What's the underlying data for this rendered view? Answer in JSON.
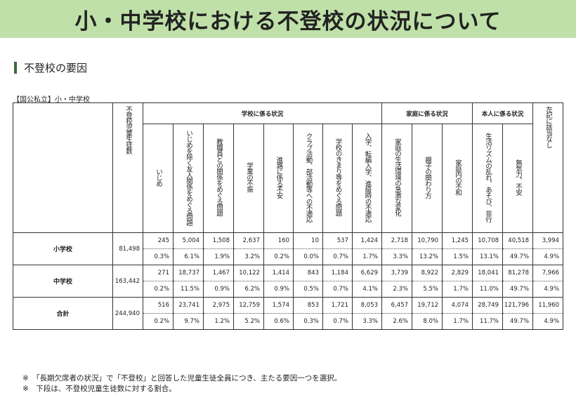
{
  "title": "小・中学校における不登校の状況について",
  "section_heading": "不登校の要因",
  "table_caption": "【国公私立】小・中学校",
  "total_header": "不登校児童生徒数",
  "groups": [
    {
      "label": "学校に係る状況"
    },
    {
      "label": "家庭に係る状況"
    },
    {
      "label": "本人に係る状況"
    }
  ],
  "none_header": "左記に該当なし",
  "columns": [
    "いじめ",
    "いじめを除く友人関係をめぐる問題",
    "教職員との関係をめぐる問題",
    "学業の不振",
    "進路に係る不安",
    "クラブ活動、部活動等への不適応",
    "学校のきまり等をめぐる問題",
    "入学、転編入学、進級時の不適応",
    "家庭の生活環境の急激な変化",
    "親子の関わり方",
    "家庭内の不和",
    "生活リズムの乱れ、あそび、非行",
    "無気力、不安"
  ],
  "rows": [
    {
      "label": "小学校",
      "total": "81,498",
      "counts": [
        "245",
        "5,004",
        "1,508",
        "2,637",
        "160",
        "10",
        "537",
        "1,424",
        "2,718",
        "10,790",
        "1,245",
        "10,708",
        "40,518",
        "3,994"
      ],
      "pcts": [
        "0.3%",
        "6.1%",
        "1.9%",
        "3.2%",
        "0.2%",
        "0.0%",
        "0.7%",
        "1.7%",
        "3.3%",
        "13.2%",
        "1.5%",
        "13.1%",
        "49.7%",
        "4.9%"
      ]
    },
    {
      "label": "中学校",
      "total": "163,442",
      "counts": [
        "271",
        "18,737",
        "1,467",
        "10,122",
        "1,414",
        "843",
        "1,184",
        "6,629",
        "3,739",
        "8,922",
        "2,829",
        "18,041",
        "81,278",
        "7,966"
      ],
      "pcts": [
        "0.2%",
        "11.5%",
        "0.9%",
        "6.2%",
        "0.9%",
        "0.5%",
        "0.7%",
        "4.1%",
        "2.3%",
        "5.5%",
        "1.7%",
        "11.0%",
        "49.7%",
        "4.9%"
      ]
    },
    {
      "label": "合計",
      "total": "244,940",
      "counts": [
        "516",
        "23,741",
        "2,975",
        "12,759",
        "1,574",
        "853",
        "1,721",
        "8,053",
        "6,457",
        "19,712",
        "4,074",
        "28,749",
        "121,796",
        "11,960"
      ],
      "pcts": [
        "0.2%",
        "9.7%",
        "1.2%",
        "5.2%",
        "0.6%",
        "0.3%",
        "0.7%",
        "3.3%",
        "2.6%",
        "8.0%",
        "1.7%",
        "11.7%",
        "49.7%",
        "4.9%"
      ]
    }
  ],
  "notes": [
    "※　「長期欠席者の状況」で「不登校」と回答した児童生徒全員につき、主たる要因一つを選択。",
    "※　下段は、不登校児童生徒数に対する割合。"
  ]
}
